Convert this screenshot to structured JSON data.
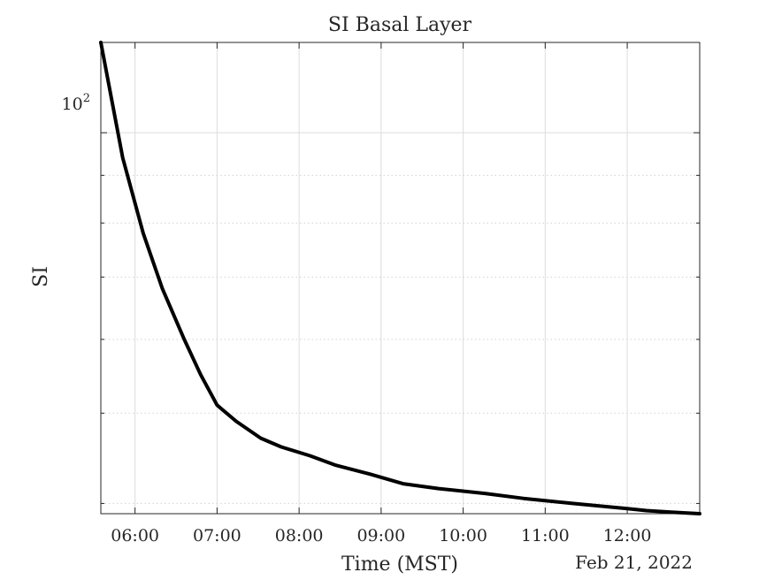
{
  "chart_data": {
    "type": "line",
    "title": "SI Basal Layer",
    "xlabel": "Time (MST)",
    "ylabel": "SI",
    "date_label": "Feb 21, 2022",
    "y_scale": "log",
    "ylim": [
      39,
      125
    ],
    "y_tick_label": {
      "base": "10",
      "exponent": "2",
      "value": 100
    },
    "y_minor_ticks": [
      40,
      50,
      60,
      70,
      80,
      90
    ],
    "x_ticks": [
      "06:00",
      "07:00",
      "08:00",
      "09:00",
      "10:00",
      "11:00",
      "12:00"
    ],
    "xlim": [
      "05:35",
      "12:53"
    ],
    "grid": true,
    "line_color": "#000000",
    "series": [
      {
        "x": [
          "05:35",
          "05:51",
          "06:06",
          "06:20",
          "06:36",
          "06:48",
          "07:00",
          "07:14",
          "07:32",
          "07:47",
          "08:08",
          "08:26",
          "08:52",
          "09:16",
          "09:42",
          "10:16",
          "10:44",
          "11:20",
          "12:00",
          "12:14",
          "12:38",
          "12:53"
        ],
        "y": [
          125,
          94,
          78,
          68,
          60,
          55,
          51,
          49,
          47,
          46,
          45,
          44,
          43,
          42,
          41.5,
          41,
          40.5,
          40,
          39.5,
          39.3,
          39.1,
          39
        ]
      }
    ]
  }
}
